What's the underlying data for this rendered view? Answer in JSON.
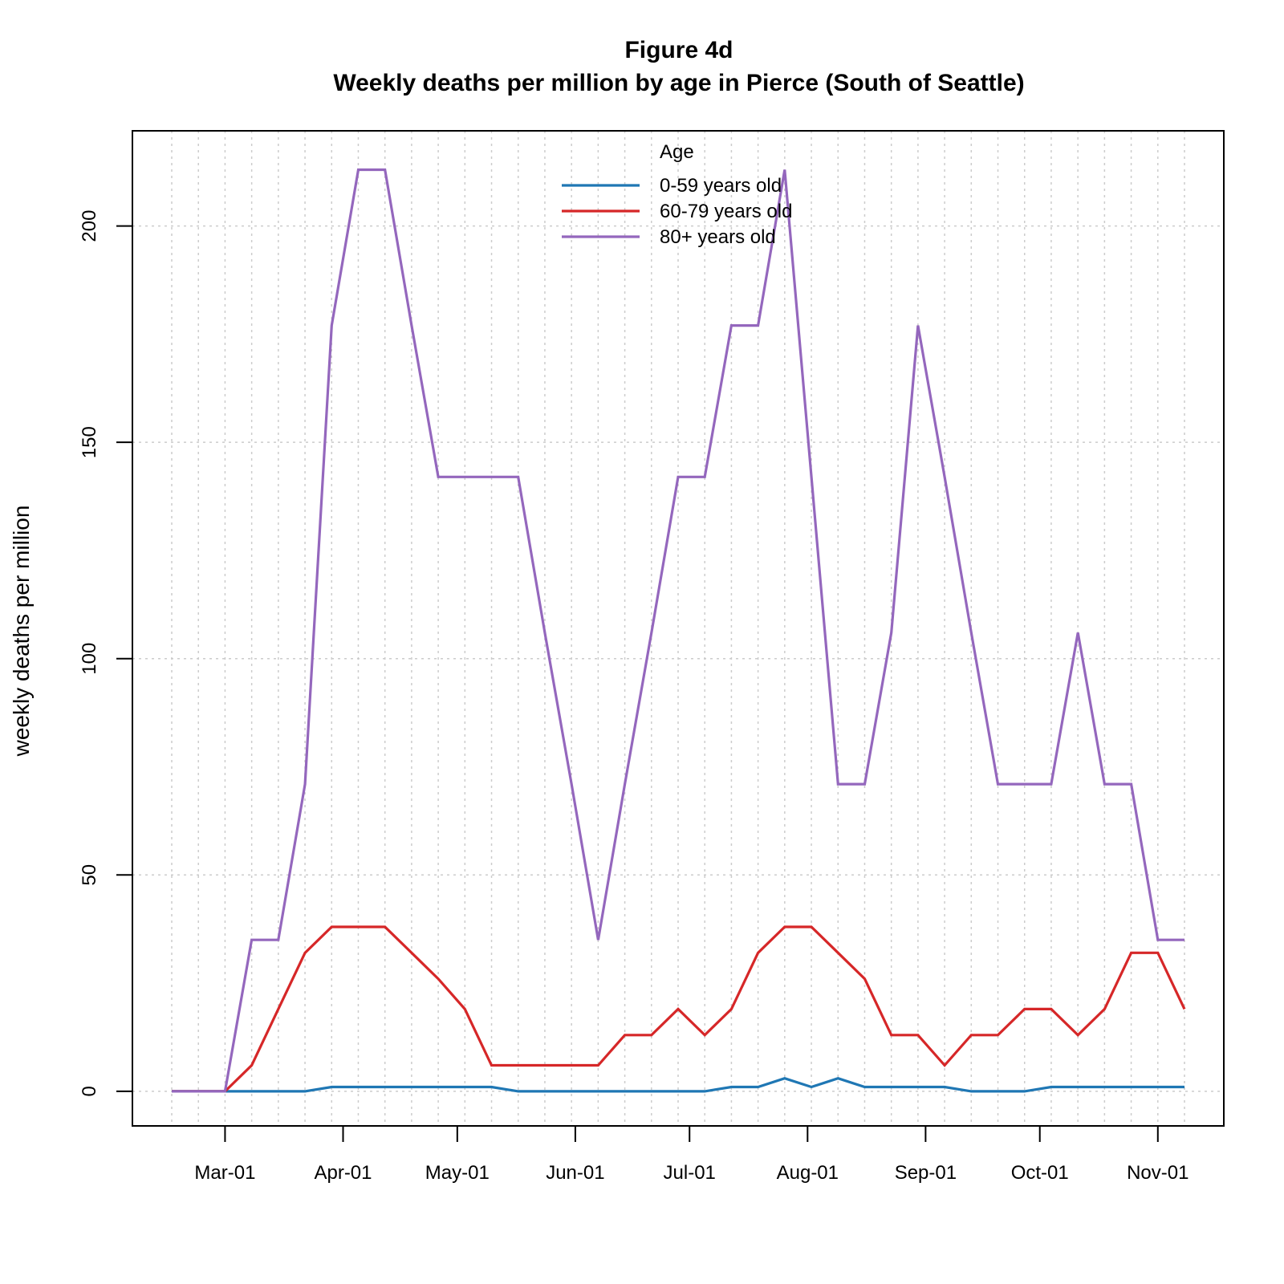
{
  "chart_data": {
    "type": "line",
    "title": "Figure 4d",
    "subtitle": "Weekly deaths per million by age in Pierce (South of Seattle)",
    "xlabel": "",
    "ylabel": "weekly deaths per million",
    "x_tick_labels": [
      "Mar-01",
      "Apr-01",
      "May-01",
      "Jun-01",
      "Jul-01",
      "Aug-01",
      "Sep-01",
      "Oct-01",
      "Nov-01"
    ],
    "x_tick_dates": [
      "2020-03-01",
      "2020-04-01",
      "2020-05-01",
      "2020-06-01",
      "2020-07-01",
      "2020-08-01",
      "2020-09-01",
      "2020-10-01",
      "2020-11-01"
    ],
    "y_ticks": [
      0,
      50,
      100,
      150,
      200
    ],
    "ylim": [
      -8,
      222
    ],
    "grid": true,
    "legend": {
      "title": "Age",
      "position": "top-center"
    },
    "x": [
      "2020-02-16",
      "2020-02-23",
      "2020-03-01",
      "2020-03-08",
      "2020-03-15",
      "2020-03-22",
      "2020-03-29",
      "2020-04-05",
      "2020-04-12",
      "2020-04-19",
      "2020-04-26",
      "2020-05-03",
      "2020-05-10",
      "2020-05-17",
      "2020-05-24",
      "2020-05-31",
      "2020-06-07",
      "2020-06-14",
      "2020-06-21",
      "2020-06-28",
      "2020-07-05",
      "2020-07-12",
      "2020-07-19",
      "2020-07-26",
      "2020-08-02",
      "2020-08-09",
      "2020-08-16",
      "2020-08-23",
      "2020-08-30",
      "2020-09-06",
      "2020-09-13",
      "2020-09-20",
      "2020-09-27",
      "2020-10-04",
      "2020-10-11",
      "2020-10-18",
      "2020-10-25",
      "2020-11-01",
      "2020-11-08"
    ],
    "series": [
      {
        "name": "0-59 years old",
        "color": "#1f77b4",
        "values": [
          0,
          0,
          0,
          0,
          0,
          0,
          1,
          1,
          1,
          1,
          1,
          1,
          1,
          0,
          0,
          0,
          0,
          0,
          0,
          0,
          0,
          1,
          1,
          3,
          1,
          3,
          1,
          1,
          1,
          1,
          0,
          0,
          0,
          1,
          1,
          1,
          1,
          1,
          1
        ]
      },
      {
        "name": "60-79 years old",
        "color": "#d62728",
        "values": [
          0,
          0,
          0,
          6,
          19,
          32,
          38,
          38,
          38,
          32,
          26,
          19,
          6,
          6,
          6,
          6,
          6,
          13,
          13,
          19,
          13,
          19,
          32,
          38,
          38,
          32,
          26,
          13,
          13,
          6,
          13,
          13,
          19,
          19,
          13,
          19,
          32,
          32,
          19
        ]
      },
      {
        "name": "80+ years old",
        "color": "#9467bd",
        "values": [
          0,
          0,
          0,
          35,
          35,
          71,
          177,
          213,
          213,
          177,
          142,
          142,
          142,
          142,
          106,
          71,
          35,
          71,
          106,
          142,
          142,
          177,
          177,
          213,
          142,
          71,
          71,
          106,
          177,
          142,
          106,
          71,
          71,
          71,
          106,
          71,
          71,
          35,
          35
        ]
      }
    ]
  }
}
